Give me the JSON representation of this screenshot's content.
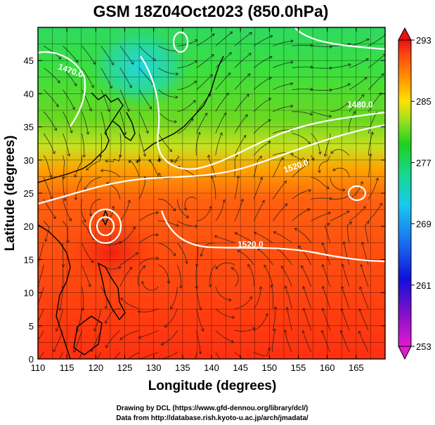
{
  "title": "GSM 18Z04Oct2023 (850.0hPa)",
  "x_axis": {
    "label": "Longitude (degrees)",
    "ticks": [
      "110",
      "115",
      "120",
      "125",
      "130",
      "135",
      "140",
      "145",
      "150",
      "155",
      "160",
      "165"
    ],
    "range": [
      110,
      170
    ]
  },
  "y_axis": {
    "label": "Latitude (degrees)",
    "ticks": [
      "0",
      "5",
      "10",
      "15",
      "20",
      "25",
      "30",
      "35",
      "40",
      "45"
    ],
    "range": [
      0,
      50
    ]
  },
  "colorbar": {
    "ticks": [
      "293",
      "285",
      "277",
      "269",
      "261",
      "253"
    ],
    "range": [
      253,
      293
    ],
    "colors": [
      "#e31ad0",
      "#6a00c8",
      "#1010d8",
      "#1a6ff0",
      "#18c8f0",
      "#18d890",
      "#20d020",
      "#7ee020",
      "#ffe000",
      "#ff9000",
      "#ff4a10",
      "#e81010"
    ]
  },
  "contours": {
    "color": "#ffffff",
    "labels": [
      "1470.0",
      "1480.0",
      "1520.0",
      "1520.0"
    ]
  },
  "credits": {
    "line1": "Drawing by DCL (https://www.gfd-dennou.org/library/dcl/)",
    "line2": "Data from http://database.rish.kyoto-u.ac.jp/arch/jmadata/"
  }
}
